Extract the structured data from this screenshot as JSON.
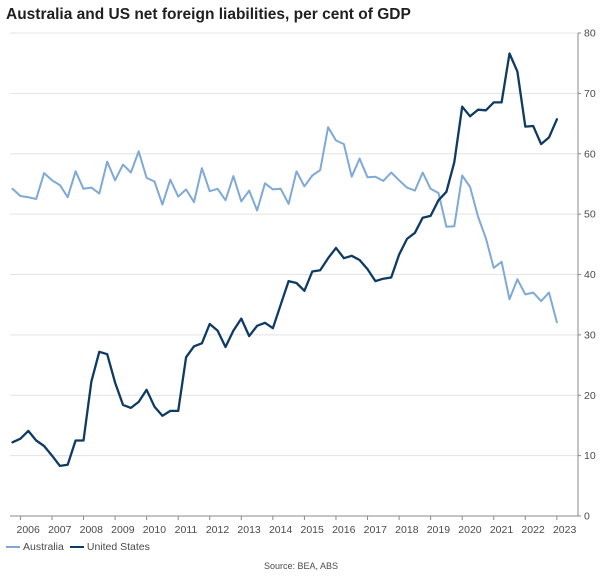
{
  "chart_data": {
    "type": "line",
    "title": "Australia and US net foreign liabilities, per cent of GDP",
    "source": "Source: BEA, ABS",
    "xlabel": "",
    "ylabel": "",
    "ylim": [
      0,
      80
    ],
    "yticks": [
      0,
      10,
      20,
      30,
      40,
      50,
      60,
      70,
      80
    ],
    "xlim": [
      2005.67,
      2023.67
    ],
    "xticks": [
      "2006",
      "2007",
      "2008",
      "2009",
      "2010",
      "2011",
      "2012",
      "2013",
      "2014",
      "2015",
      "2016",
      "2017",
      "2018",
      "2019",
      "2020",
      "2021",
      "2022",
      "2023"
    ],
    "grid": "horizontal",
    "y_axis_side": "right",
    "legend_position": "bottom-left",
    "series": [
      {
        "name": "Australia",
        "color": "#7fa9d6",
        "x": [
          2005.75,
          2006.0,
          2006.25,
          2006.5,
          2006.75,
          2007.0,
          2007.25,
          2007.5,
          2007.75,
          2008.0,
          2008.25,
          2008.5,
          2008.75,
          2009.0,
          2009.25,
          2009.5,
          2009.75,
          2010.0,
          2010.25,
          2010.5,
          2010.75,
          2011.0,
          2011.25,
          2011.5,
          2011.75,
          2012.0,
          2012.25,
          2012.5,
          2012.75,
          2013.0,
          2013.25,
          2013.5,
          2013.75,
          2014.0,
          2014.25,
          2014.5,
          2014.75,
          2015.0,
          2015.25,
          2015.5,
          2015.75,
          2016.0,
          2016.25,
          2016.5,
          2016.75,
          2017.0,
          2017.25,
          2017.5,
          2017.75,
          2018.0,
          2018.25,
          2018.5,
          2018.75,
          2019.0,
          2019.25,
          2019.5,
          2019.75,
          2020.0,
          2020.25,
          2020.5,
          2020.75,
          2021.0,
          2021.25,
          2021.5,
          2021.75,
          2022.0,
          2022.25,
          2022.5,
          2022.75,
          2023.0
        ],
        "values": [
          54.2,
          53.0,
          52.8,
          52.5,
          56.8,
          55.6,
          54.8,
          52.8,
          57.1,
          54.2,
          54.4,
          53.4,
          58.7,
          55.6,
          58.2,
          56.9,
          60.4,
          56.0,
          55.4,
          51.6,
          55.7,
          52.9,
          54.1,
          52.0,
          57.6,
          53.8,
          54.2,
          52.3,
          56.3,
          52.1,
          53.9,
          50.6,
          55.1,
          54.1,
          54.2,
          51.7,
          57.1,
          54.6,
          56.4,
          57.3,
          64.4,
          62.2,
          61.6,
          56.2,
          59.2,
          56.1,
          56.2,
          55.5,
          56.9,
          55.6,
          54.4,
          53.9,
          56.9,
          54.2,
          53.5,
          47.9,
          48.0,
          56.4,
          54.5,
          49.6,
          46.0,
          41.1,
          42.1,
          35.9,
          39.2,
          36.7,
          37.0,
          35.6,
          37.0,
          32.1
        ]
      },
      {
        "name": "United States",
        "color": "#0e3b63",
        "x": [
          2005.75,
          2006.0,
          2006.25,
          2006.5,
          2006.75,
          2007.0,
          2007.25,
          2007.5,
          2007.75,
          2008.0,
          2008.25,
          2008.5,
          2008.75,
          2009.0,
          2009.25,
          2009.5,
          2009.75,
          2010.0,
          2010.25,
          2010.5,
          2010.75,
          2011.0,
          2011.25,
          2011.5,
          2011.75,
          2012.0,
          2012.25,
          2012.5,
          2012.75,
          2013.0,
          2013.25,
          2013.5,
          2013.75,
          2014.0,
          2014.25,
          2014.5,
          2014.75,
          2015.0,
          2015.25,
          2015.5,
          2015.75,
          2016.0,
          2016.25,
          2016.5,
          2016.75,
          2017.0,
          2017.25,
          2017.5,
          2017.75,
          2018.0,
          2018.25,
          2018.5,
          2018.75,
          2019.0,
          2019.25,
          2019.5,
          2019.75,
          2020.0,
          2020.25,
          2020.5,
          2020.75,
          2021.0,
          2021.25,
          2021.5,
          2021.75,
          2022.0,
          2022.25,
          2022.5,
          2022.75,
          2023.0
        ],
        "values": [
          12.2,
          12.8,
          14.1,
          12.5,
          11.6,
          10.0,
          8.3,
          8.5,
          12.5,
          12.5,
          22.3,
          27.2,
          26.8,
          22.1,
          18.4,
          17.9,
          18.9,
          20.9,
          18.1,
          16.6,
          17.4,
          17.4,
          26.3,
          28.1,
          28.6,
          31.8,
          30.7,
          28.0,
          30.7,
          32.7,
          29.8,
          31.5,
          32.0,
          31.1,
          35.0,
          38.9,
          38.6,
          37.3,
          40.5,
          40.7,
          42.7,
          44.4,
          42.7,
          43.1,
          42.4,
          40.9,
          38.9,
          39.3,
          39.5,
          43.3,
          45.9,
          46.9,
          49.4,
          49.7,
          52.3,
          53.7,
          58.6,
          67.8,
          66.2,
          67.3,
          67.2,
          68.5,
          68.5,
          76.6,
          73.6,
          64.5,
          64.6,
          61.6,
          62.7,
          65.7
        ]
      }
    ]
  }
}
